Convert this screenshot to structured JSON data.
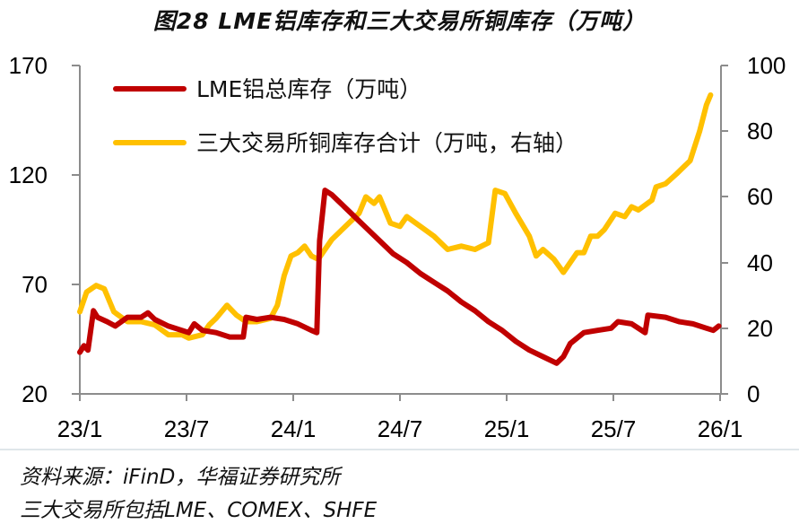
{
  "chart_data": {
    "type": "line",
    "title": "图28 LME铝库存和三大交易所铜库存（万吨）",
    "x_tick_labels": [
      "23/1",
      "23/7",
      "24/1",
      "24/7",
      "25/1",
      "25/7",
      "26/1"
    ],
    "y_left": {
      "ticks": [
        20,
        70,
        120,
        170
      ],
      "range": [
        20,
        170
      ]
    },
    "y_right": {
      "ticks": [
        0,
        20,
        40,
        60,
        80,
        100
      ],
      "range": [
        0,
        100
      ]
    },
    "legend_position": "top-left inside",
    "grid": false,
    "series": [
      {
        "name": "LME铝总库存（万吨）",
        "axis": "left",
        "color": "#C00000",
        "points": [
          [
            0,
            39
          ],
          [
            0.3,
            42
          ],
          [
            0.6,
            40
          ],
          [
            1,
            58
          ],
          [
            1.3,
            55
          ],
          [
            2,
            53
          ],
          [
            2.6,
            51
          ],
          [
            3.5,
            55
          ],
          [
            4.5,
            55
          ],
          [
            5,
            57
          ],
          [
            5.5,
            54
          ],
          [
            6.5,
            51
          ],
          [
            8,
            48
          ],
          [
            8.4,
            52
          ],
          [
            9,
            49
          ],
          [
            10,
            48
          ],
          [
            11,
            46
          ],
          [
            12,
            46
          ],
          [
            12.2,
            55
          ],
          [
            13,
            54
          ],
          [
            14,
            55
          ],
          [
            15,
            54
          ],
          [
            16,
            52
          ],
          [
            17,
            49
          ],
          [
            17.4,
            48
          ],
          [
            17.6,
            90
          ],
          [
            18,
            113
          ],
          [
            18.5,
            111
          ],
          [
            19,
            108
          ],
          [
            20,
            102
          ],
          [
            21,
            96
          ],
          [
            22,
            90
          ],
          [
            23,
            84
          ],
          [
            24,
            80
          ],
          [
            25,
            75
          ],
          [
            26,
            71
          ],
          [
            27,
            67
          ],
          [
            28,
            62
          ],
          [
            29,
            58
          ],
          [
            30,
            53
          ],
          [
            31,
            49
          ],
          [
            32,
            44
          ],
          [
            33,
            40
          ],
          [
            34,
            37
          ],
          [
            35,
            34
          ],
          [
            35.5,
            37
          ],
          [
            36,
            43
          ],
          [
            37,
            48
          ],
          [
            38,
            49
          ],
          [
            39,
            50
          ],
          [
            39.5,
            53
          ],
          [
            40.5,
            52
          ],
          [
            41.5,
            48
          ],
          [
            41.7,
            56
          ],
          [
            43,
            55
          ],
          [
            44,
            53
          ],
          [
            45,
            52
          ],
          [
            46,
            50
          ],
          [
            46.5,
            49
          ],
          [
            46.9,
            51
          ]
        ]
      },
      {
        "name": "三大交易所铜库存合计（万吨，右轴）",
        "axis": "right",
        "color": "#FFC000",
        "points": [
          [
            0,
            25
          ],
          [
            0.5,
            31
          ],
          [
            1.2,
            33
          ],
          [
            1.8,
            32
          ],
          [
            2.5,
            25
          ],
          [
            3.5,
            22
          ],
          [
            4.5,
            22
          ],
          [
            5.5,
            21
          ],
          [
            6.5,
            18
          ],
          [
            7.5,
            18
          ],
          [
            8,
            17
          ],
          [
            9,
            18
          ],
          [
            9.5,
            21
          ],
          [
            10,
            23
          ],
          [
            10.8,
            27
          ],
          [
            11.5,
            24
          ],
          [
            12.2,
            22
          ],
          [
            13,
            22
          ],
          [
            14,
            23
          ],
          [
            14.5,
            27
          ],
          [
            15,
            36
          ],
          [
            15.5,
            42
          ],
          [
            16,
            43
          ],
          [
            16.5,
            45
          ],
          [
            17,
            42
          ],
          [
            17.5,
            41
          ],
          [
            18.5,
            47
          ],
          [
            19.5,
            51
          ],
          [
            20.5,
            55
          ],
          [
            21,
            60
          ],
          [
            21.6,
            58
          ],
          [
            22,
            60
          ],
          [
            22.8,
            52
          ],
          [
            23.5,
            51
          ],
          [
            24,
            54
          ],
          [
            25,
            51
          ],
          [
            26,
            48
          ],
          [
            27,
            44
          ],
          [
            28,
            45
          ],
          [
            29,
            44
          ],
          [
            30,
            46
          ],
          [
            30.5,
            62
          ],
          [
            31.2,
            61
          ],
          [
            32,
            55
          ],
          [
            33,
            48
          ],
          [
            33.5,
            42
          ],
          [
            34,
            44
          ],
          [
            34.8,
            41
          ],
          [
            35.5,
            37
          ],
          [
            36.5,
            43
          ],
          [
            37,
            43
          ],
          [
            37.5,
            48
          ],
          [
            38,
            48
          ],
          [
            38.5,
            50
          ],
          [
            39.3,
            55
          ],
          [
            40,
            54
          ],
          [
            40.5,
            57
          ],
          [
            41,
            56
          ],
          [
            42,
            59
          ],
          [
            42.3,
            63
          ],
          [
            43,
            64
          ],
          [
            43.8,
            67
          ],
          [
            44.8,
            71
          ],
          [
            45.5,
            80
          ],
          [
            46,
            88
          ],
          [
            46.3,
            91
          ]
        ]
      }
    ]
  },
  "title": "图28 LME铝库存和三大交易所铜库存（万吨）",
  "legend": {
    "items": [
      {
        "label": "LME铝总库存（万吨）",
        "color": "#C00000"
      },
      {
        "label": "三大交易所铜库存合计（万吨，右轴）",
        "color": "#FFC000"
      }
    ]
  },
  "axes": {
    "left_ticks": [
      "170",
      "120",
      "70",
      "20"
    ],
    "right_ticks": [
      "100",
      "80",
      "60",
      "40",
      "20",
      "0"
    ],
    "x_ticks": [
      "23/1",
      "23/7",
      "24/1",
      "24/7",
      "25/1",
      "25/7",
      "26/1"
    ]
  },
  "footer": {
    "source": "资料来源：iFinD，华福证券研究所",
    "note": "三大交易所包括LME、COMEX、SHFE"
  }
}
